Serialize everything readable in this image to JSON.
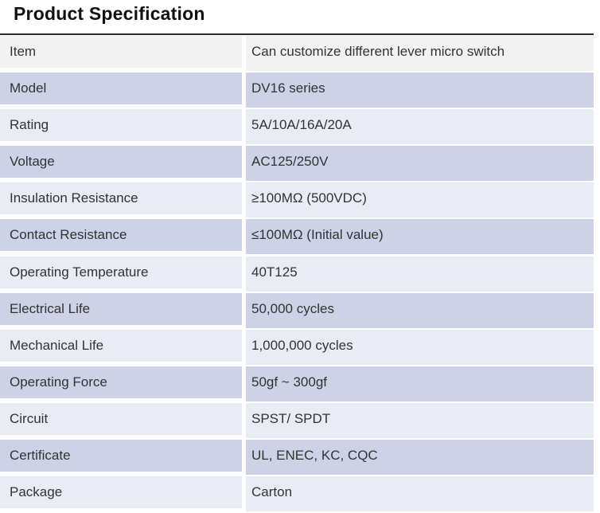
{
  "page": {
    "title": "Product Specification"
  },
  "colors": {
    "page-bg": "#ffffff",
    "title-text": "#111111",
    "border-top": "#2b2b2b",
    "text": "#333333",
    "row-gray": "#f2f2f2",
    "row-dark": "#cdd2e7",
    "row-light": "#e9ebf5"
  },
  "table": {
    "rows": [
      {
        "label": "Item",
        "value": "Can customize different lever micro switch"
      },
      {
        "label": "Model",
        "value": "DV16 series"
      },
      {
        "label": "Rating",
        "value": "5A/10A/16A/20A"
      },
      {
        "label": "Voltage",
        "value": "AC125/250V"
      },
      {
        "label": "Insulation Resistance",
        "value": "≥100MΩ (500VDC)"
      },
      {
        "label": "Contact Resistance",
        "value": "≤100MΩ (Initial value)"
      },
      {
        "label": "Operating Temperature",
        "value": "40T125"
      },
      {
        "label": "Electrical Life",
        "value": "50,000 cycles"
      },
      {
        "label": "Mechanical Life",
        "value": "1,000,000 cycles"
      },
      {
        "label": "Operating Force",
        "value": "50gf ~ 300gf"
      },
      {
        "label": "Circuit",
        "value": "SPST/ SPDT"
      },
      {
        "label": "Certificate",
        "value": "UL, ENEC, KC, CQC"
      },
      {
        "label": "Package",
        "value": "Carton"
      }
    ]
  }
}
